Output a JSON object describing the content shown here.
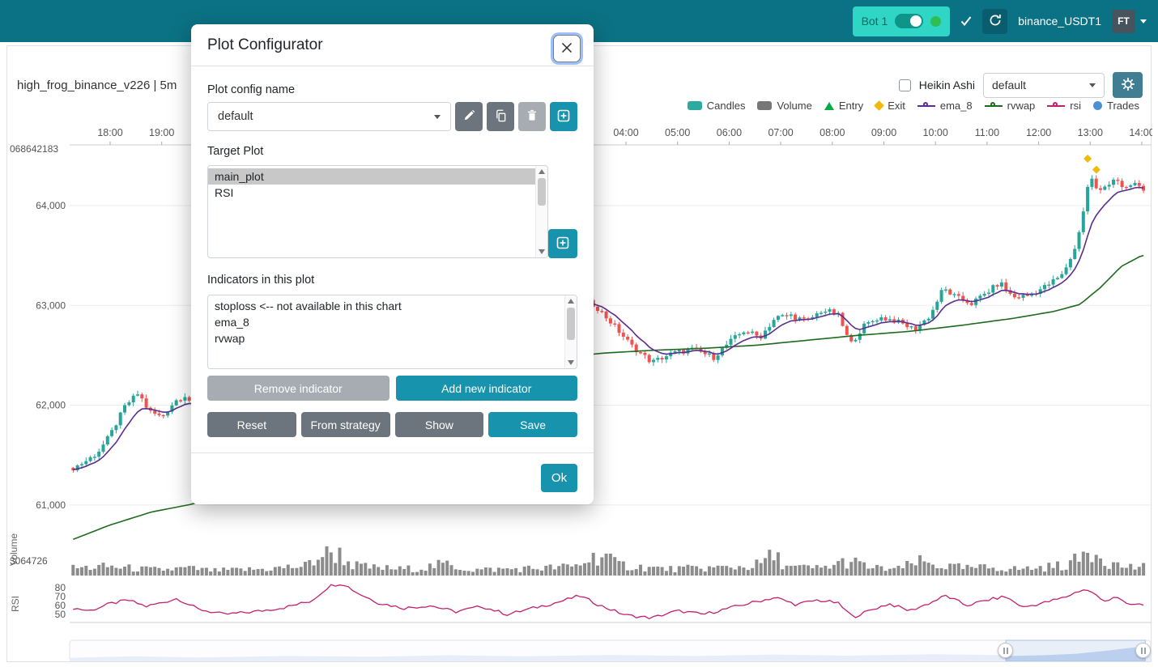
{
  "navbar": {
    "bot_pill": {
      "label": "Bot 1",
      "toggle_on": true
    },
    "pair_label": "binance_USDT1",
    "avatar": "FT",
    "colors": {
      "bar": "#0b7285",
      "pill": "#2fd6c6",
      "online_dot": "#2fbe54"
    }
  },
  "chart_header": {
    "title": "high_frog_binance_v226 | 5m",
    "heikin_ashi_label": "Heikin Ashi",
    "plot_config_select_value": "default",
    "legend": [
      {
        "label": "Candles",
        "type": "rect",
        "color": "#2caaa0"
      },
      {
        "label": "Volume",
        "type": "rect",
        "color": "#777777"
      },
      {
        "label": "Entry",
        "type": "triangle",
        "color": "#00ab45"
      },
      {
        "label": "Exit",
        "type": "diamond",
        "color": "#f0b90b"
      },
      {
        "label": "ema_8",
        "type": "line",
        "color": "#5b2d8e"
      },
      {
        "label": "rvwap",
        "type": "line",
        "color": "#1e6b1e"
      },
      {
        "label": "rsi",
        "type": "line",
        "color": "#c21f6e"
      },
      {
        "label": "Trades",
        "type": "circle",
        "color": "#4a90d2"
      }
    ]
  },
  "modal": {
    "title": "Plot Configurator",
    "plot_config_name_label": "Plot config name",
    "config_select_value": "default",
    "target_plot_label": "Target Plot",
    "target_plots": [
      "main_plot",
      "RSI"
    ],
    "selected_target": "main_plot",
    "indicators_label": "Indicators in this plot",
    "indicators": [
      "stoploss <-- not available in this chart",
      "ema_8",
      "rvwap"
    ],
    "buttons": {
      "remove": "Remove indicator",
      "add": "Add new indicator",
      "reset": "Reset",
      "from_strategy": "From strategy",
      "show": "Show",
      "save": "Save",
      "ok": "Ok"
    }
  },
  "chart_data": {
    "type": "candlestick",
    "timeframe": "5m",
    "x_axis": {
      "unit": "hour",
      "start": 17.2,
      "end": 38.15,
      "series_end": 38.0,
      "labels": [
        [
          18,
          "18:00"
        ],
        [
          19,
          "19:00"
        ],
        [
          28,
          "04:00"
        ],
        [
          29,
          "05:00"
        ],
        [
          30,
          "06:00"
        ],
        [
          31,
          "07:00"
        ],
        [
          32,
          "08:00"
        ],
        [
          33,
          "09:00"
        ],
        [
          34,
          "10:00"
        ],
        [
          35,
          "11:00"
        ],
        [
          36,
          "12:00"
        ],
        [
          37,
          "13:00"
        ],
        [
          38,
          "14:00"
        ]
      ]
    },
    "price_axis": {
      "labels": [
        [
          64000,
          "64,000"
        ],
        [
          63000,
          "63,000"
        ],
        [
          62000,
          "62,000"
        ],
        [
          61000,
          "61,000"
        ]
      ],
      "top_label": "068642183"
    },
    "volume_axis": {
      "label": "3064726",
      "panel_label": "Volume"
    },
    "rsi_axis": {
      "labels": [
        [
          80,
          "80"
        ],
        [
          70,
          "70"
        ],
        [
          60,
          "60"
        ],
        [
          50,
          "50"
        ]
      ],
      "panel_label": "RSI"
    },
    "close_anchors": [
      [
        17.2,
        61350
      ],
      [
        17.5,
        61430
      ],
      [
        17.75,
        61520
      ],
      [
        18.0,
        61700
      ],
      [
        18.3,
        62000
      ],
      [
        18.55,
        62120
      ],
      [
        18.75,
        61940
      ],
      [
        19.0,
        61880
      ],
      [
        19.25,
        62040
      ],
      [
        19.45,
        62100
      ],
      [
        19.7,
        61950
      ],
      [
        20.3,
        61720
      ],
      [
        21.0,
        61620
      ],
      [
        21.7,
        61900
      ],
      [
        22.3,
        62250
      ],
      [
        23.0,
        62480
      ],
      [
        24.0,
        62700
      ],
      [
        24.8,
        62560
      ],
      [
        25.6,
        62620
      ],
      [
        26.4,
        62800
      ],
      [
        27.0,
        63100
      ],
      [
        27.4,
        63000
      ],
      [
        27.8,
        62780
      ],
      [
        28.1,
        62600
      ],
      [
        28.5,
        62430
      ],
      [
        28.9,
        62520
      ],
      [
        29.3,
        62560
      ],
      [
        29.7,
        62480
      ],
      [
        30.0,
        62630
      ],
      [
        30.3,
        62750
      ],
      [
        30.6,
        62680
      ],
      [
        30.9,
        62880
      ],
      [
        31.2,
        62900
      ],
      [
        31.5,
        62840
      ],
      [
        31.8,
        62950
      ],
      [
        32.1,
        62920
      ],
      [
        32.35,
        62610
      ],
      [
        32.6,
        62790
      ],
      [
        32.9,
        62880
      ],
      [
        33.2,
        62850
      ],
      [
        33.6,
        62760
      ],
      [
        33.9,
        62900
      ],
      [
        34.15,
        63170
      ],
      [
        34.4,
        63080
      ],
      [
        34.7,
        63020
      ],
      [
        35.0,
        63130
      ],
      [
        35.25,
        63230
      ],
      [
        35.5,
        63080
      ],
      [
        35.8,
        63100
      ],
      [
        36.1,
        63180
      ],
      [
        36.45,
        63300
      ],
      [
        36.7,
        63560
      ],
      [
        36.85,
        63900
      ],
      [
        37.0,
        64320
      ],
      [
        37.15,
        64120
      ],
      [
        37.3,
        64200
      ],
      [
        37.5,
        64290
      ],
      [
        37.65,
        64140
      ],
      [
        37.85,
        64230
      ],
      [
        38.0,
        64160
      ]
    ],
    "rvwap_anchors": [
      [
        17.2,
        60640
      ],
      [
        18.0,
        60800
      ],
      [
        18.8,
        60930
      ],
      [
        19.6,
        61010
      ],
      [
        20.5,
        61200
      ],
      [
        21.5,
        61500
      ],
      [
        22.5,
        61800
      ],
      [
        23.5,
        62050
      ],
      [
        24.5,
        62250
      ],
      [
        25.5,
        62380
      ],
      [
        26.5,
        62460
      ],
      [
        27.5,
        62520
      ],
      [
        28.5,
        62550
      ],
      [
        29.5,
        62570
      ],
      [
        30.5,
        62600
      ],
      [
        31.5,
        62650
      ],
      [
        32.5,
        62700
      ],
      [
        33.5,
        62740
      ],
      [
        34.5,
        62800
      ],
      [
        35.5,
        62870
      ],
      [
        36.3,
        62940
      ],
      [
        36.8,
        63010
      ],
      [
        37.2,
        63180
      ],
      [
        37.6,
        63390
      ],
      [
        38.0,
        63500
      ]
    ],
    "volume_anchors": [
      [
        17.2,
        9
      ],
      [
        18,
        11
      ],
      [
        18.6,
        8
      ],
      [
        19,
        7
      ],
      [
        19.5,
        9
      ],
      [
        20,
        6
      ],
      [
        21,
        8
      ],
      [
        21.8,
        12
      ],
      [
        22.2,
        30
      ],
      [
        22.45,
        26
      ],
      [
        22.7,
        13
      ],
      [
        23,
        10
      ],
      [
        23.6,
        8
      ],
      [
        24,
        9
      ],
      [
        24.5,
        14
      ],
      [
        25,
        7
      ],
      [
        25.7,
        8
      ],
      [
        26.3,
        9
      ],
      [
        27,
        11
      ],
      [
        27.55,
        28
      ],
      [
        27.8,
        14
      ],
      [
        28.2,
        11
      ],
      [
        28.8,
        8
      ],
      [
        29.4,
        9
      ],
      [
        30,
        10
      ],
      [
        30.5,
        12
      ],
      [
        30.85,
        24
      ],
      [
        31.2,
        10
      ],
      [
        31.8,
        9
      ],
      [
        32.3,
        18
      ],
      [
        32.8,
        9
      ],
      [
        33.3,
        8
      ],
      [
        33.65,
        17
      ],
      [
        34.1,
        12
      ],
      [
        34.6,
        9
      ],
      [
        35.1,
        10
      ],
      [
        35.6,
        8
      ],
      [
        36.1,
        10
      ],
      [
        36.5,
        13
      ],
      [
        36.8,
        20
      ],
      [
        36.95,
        34
      ],
      [
        37.1,
        31
      ],
      [
        37.25,
        24
      ],
      [
        37.45,
        14
      ],
      [
        37.7,
        11
      ],
      [
        38,
        10
      ]
    ],
    "rsi_anchors": [
      [
        17.2,
        58
      ],
      [
        17.6,
        54
      ],
      [
        18.0,
        62
      ],
      [
        18.35,
        66
      ],
      [
        18.7,
        59
      ],
      [
        19.0,
        63
      ],
      [
        19.3,
        68
      ],
      [
        19.7,
        56
      ],
      [
        20.2,
        50
      ],
      [
        20.8,
        53
      ],
      [
        21.4,
        58
      ],
      [
        21.9,
        65
      ],
      [
        22.25,
        82
      ],
      [
        22.5,
        85
      ],
      [
        22.8,
        74
      ],
      [
        23.2,
        63
      ],
      [
        23.7,
        57
      ],
      [
        24.2,
        60
      ],
      [
        24.7,
        53
      ],
      [
        25.2,
        59
      ],
      [
        25.7,
        50
      ],
      [
        26.2,
        57
      ],
      [
        26.7,
        64
      ],
      [
        27.1,
        71
      ],
      [
        27.5,
        60
      ],
      [
        28.0,
        49
      ],
      [
        28.5,
        46
      ],
      [
        29.0,
        54
      ],
      [
        29.5,
        50
      ],
      [
        30.0,
        57
      ],
      [
        30.5,
        64
      ],
      [
        30.9,
        69
      ],
      [
        31.3,
        61
      ],
      [
        31.7,
        66
      ],
      [
        32.1,
        63
      ],
      [
        32.4,
        47
      ],
      [
        32.8,
        56
      ],
      [
        33.1,
        62
      ],
      [
        33.5,
        54
      ],
      [
        33.9,
        63
      ],
      [
        34.2,
        71
      ],
      [
        34.6,
        60
      ],
      [
        35.0,
        66
      ],
      [
        35.35,
        70
      ],
      [
        35.7,
        58
      ],
      [
        36.1,
        63
      ],
      [
        36.5,
        69
      ],
      [
        36.85,
        78
      ],
      [
        37.05,
        75
      ],
      [
        37.25,
        64
      ],
      [
        37.5,
        71
      ],
      [
        37.7,
        61
      ],
      [
        38.0,
        61
      ]
    ],
    "exit_markers": [
      [
        36.95,
        64470
      ],
      [
        37.12,
        64360
      ]
    ],
    "nav_anchors": [
      [
        0,
        0.2
      ],
      [
        0.06,
        0.28
      ],
      [
        0.12,
        0.22
      ],
      [
        0.2,
        0.3
      ],
      [
        0.28,
        0.26
      ],
      [
        0.35,
        0.34
      ],
      [
        0.42,
        0.28
      ],
      [
        0.5,
        0.36
      ],
      [
        0.58,
        0.3
      ],
      [
        0.65,
        0.38
      ],
      [
        0.72,
        0.32
      ],
      [
        0.8,
        0.4
      ],
      [
        0.855,
        0.36
      ],
      [
        0.87,
        0.3
      ],
      [
        0.9,
        0.34
      ],
      [
        0.93,
        0.42
      ],
      [
        0.96,
        0.6
      ],
      [
        0.985,
        0.78
      ],
      [
        1,
        0.7
      ]
    ],
    "nav_window": [
      0.866,
      0.995
    ],
    "series_colors": {
      "up": "#26a69a",
      "down": "#ef5350",
      "ema": "#5b2d8e",
      "rvwap": "#1e6b1e",
      "rsi": "#c21f6e",
      "volume": "#7f7f7f"
    }
  }
}
